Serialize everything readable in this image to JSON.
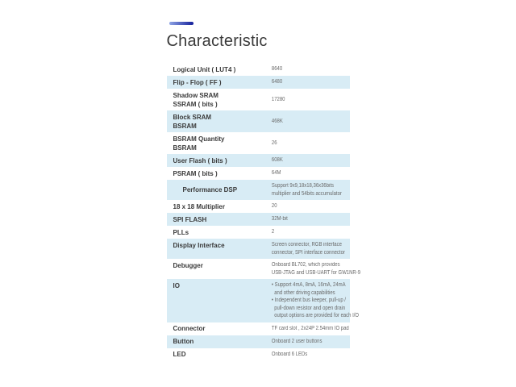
{
  "header": {
    "title": "Characteristic"
  },
  "colors": {
    "accent_gradient_start": "#8ea4e4",
    "accent_gradient_end": "#141f9b",
    "alt_row_bg": "#d8ecf5",
    "label_color": "#3a3a3a",
    "value_color": "#6a6a6a"
  },
  "table": {
    "rows": [
      {
        "id": "logical-unit",
        "label": "Logical Unit ( LUT4 )",
        "value": "8640"
      },
      {
        "id": "flip-flop",
        "label": "Flip - Flop ( FF )",
        "value": "6480"
      },
      {
        "id": "shadow-sram",
        "label": "Shadow SRAM\nSSRAM ( bits )",
        "value": "17280"
      },
      {
        "id": "block-sram",
        "label": "Block SRAM\nBSRAM",
        "value": "468K"
      },
      {
        "id": "bsram-quantity",
        "label": "BSRAM Quantity\nBSRAM",
        "value": "26"
      },
      {
        "id": "user-flash",
        "label": "User Flash ( bits )",
        "value": "608K"
      },
      {
        "id": "psram",
        "label": "PSRAM ( bits )",
        "value": "64M"
      },
      {
        "id": "performance-dsp",
        "label": "Performance DSP",
        "value": "Support 9x9,18x18,36x36bits\nmultiplier and 54bits accumulator"
      },
      {
        "id": "multiplier-18x18",
        "label": "18 x 18 Multiplier",
        "value": "20"
      },
      {
        "id": "spi-flash",
        "label": "SPI FLASH",
        "value": "32M-bit"
      },
      {
        "id": "plls",
        "label": "PLLs",
        "value": "2"
      },
      {
        "id": "display-interface",
        "label": "Display Interface",
        "value": "Screen connector, RGB interface\nconnector, SPI interface connector"
      },
      {
        "id": "debugger",
        "label": "Debugger",
        "value": "Onboard BL702, which provides\nUSB-JTAG and USB-UART for GW1NR-9"
      },
      {
        "id": "io",
        "label": "IO",
        "value": "• Support 4mA, 8mA, 16mA, 24mA\n  and other driving capabilities\n• Independent bus keeper, pull-up /\n  pull-down resistor and open drain\n  output options are provided for each I/O"
      },
      {
        "id": "connector",
        "label": "Connector",
        "value": "TF card slot , 2x24P 2.54mm IO pad"
      },
      {
        "id": "button",
        "label": "Button",
        "value": "Onboard 2 user buttons"
      },
      {
        "id": "led",
        "label": "LED",
        "value": "Onboard 6 LEDs"
      }
    ]
  }
}
